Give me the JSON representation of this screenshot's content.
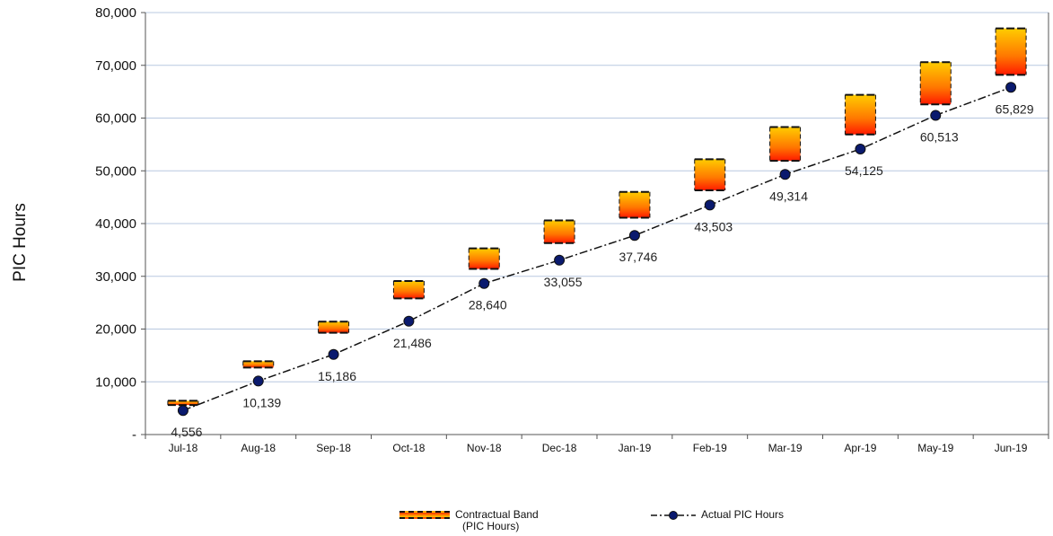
{
  "chart_data": {
    "type": "line",
    "title": "",
    "xlabel": "",
    "ylabel": "PIC Hours",
    "ylim": [
      0,
      80000
    ],
    "yticks": [
      "-",
      "10,000",
      "20,000",
      "30,000",
      "40,000",
      "50,000",
      "60,000",
      "70,000",
      "80,000"
    ],
    "categories": [
      "Jul-18",
      "Aug-18",
      "Sep-18",
      "Oct-18",
      "Nov-18",
      "Dec-18",
      "Jan-19",
      "Feb-19",
      "Mar-19",
      "Apr-19",
      "May-19",
      "Jun-19"
    ],
    "grid": true,
    "legend": "bottom",
    "series": [
      {
        "name": "Contractual Band (PIC Hours)",
        "kind": "band",
        "low": [
          5600,
          12700,
          19300,
          25800,
          31400,
          36300,
          41100,
          46300,
          51900,
          56900,
          62600,
          68200
        ],
        "high": [
          6400,
          13900,
          21400,
          29100,
          35300,
          40600,
          46000,
          52200,
          58300,
          64400,
          70600,
          77000
        ]
      },
      {
        "name": "Actual PIC Hours",
        "kind": "line",
        "values": [
          4556,
          10139,
          15186,
          21486,
          28640,
          33055,
          37746,
          43503,
          49314,
          54125,
          60513,
          65829
        ],
        "labels": [
          "4,556",
          "10,139",
          "15,186",
          "21,486",
          "28,640",
          "33,055",
          "37,746",
          "43,503",
          "49,314",
          "54,125",
          "60,513",
          "65,829"
        ]
      }
    ]
  },
  "legend": {
    "band_line1": "Contractual Band",
    "band_line2": "(PIC Hours)",
    "actual": "Actual PIC Hours"
  },
  "colors": {
    "band_top": "#ffcc00",
    "band_bottom": "#ff2200",
    "marker": "#0a1a6e",
    "grid": "#b8c8e0"
  }
}
